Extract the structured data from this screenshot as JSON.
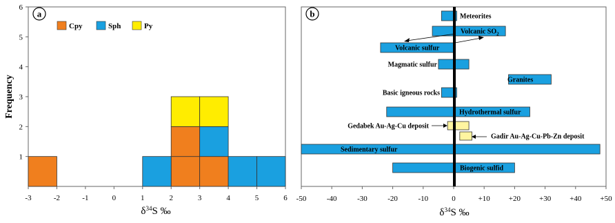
{
  "chart_data": [
    {
      "type": "bar",
      "panel_label": "a",
      "xlabel": "δ34S ‰",
      "ylabel": "Frequency",
      "xlim": [
        -3,
        6
      ],
      "ylim": [
        0,
        6
      ],
      "x_ticks": [
        "-3",
        "-2",
        "-1",
        "0",
        "1",
        "2",
        "3",
        "4",
        "5",
        "6"
      ],
      "y_ticks": [
        "1",
        "2",
        "3",
        "4",
        "5",
        "6"
      ],
      "bin_width": 1,
      "legend": [
        "Cpy",
        "Sph",
        "Py"
      ],
      "series": [
        {
          "name": "Cpy",
          "color": "#F07F1E",
          "cells": [
            {
              "bin": -3,
              "level": 1
            },
            {
              "bin": 2,
              "level": 1
            },
            {
              "bin": 2,
              "level": 2
            },
            {
              "bin": 3,
              "level": 1
            }
          ]
        },
        {
          "name": "Sph",
          "color": "#1AA0E0",
          "cells": [
            {
              "bin": 1,
              "level": 1
            },
            {
              "bin": 3,
              "level": 2
            },
            {
              "bin": 4,
              "level": 1
            },
            {
              "bin": 5,
              "level": 1
            }
          ]
        },
        {
          "name": "Py",
          "color": "#FFED00",
          "cells": [
            {
              "bin": 2,
              "level": 3
            },
            {
              "bin": 3,
              "level": 3
            }
          ]
        }
      ]
    },
    {
      "type": "range",
      "panel_label": "b",
      "xlabel": "δ34S ‰",
      "xlim": [
        -50,
        50
      ],
      "x_ticks": [
        "-50",
        "-40",
        "-30",
        "-20",
        "-10",
        "0",
        "+10",
        "+20",
        "+30",
        "+40",
        "+50"
      ],
      "ranges": [
        {
          "label": "Meteorites",
          "min": -4,
          "max": 1,
          "color": "#1AA0E0"
        },
        {
          "label": "Volcanic SO2",
          "min": -7,
          "max": 17,
          "color": "#1AA0E0"
        },
        {
          "label": "Volcanic sulfur",
          "min": -24,
          "max": 0,
          "color": "#1AA0E0"
        },
        {
          "label": "Magmatic sulfur",
          "min": -5,
          "max": 5,
          "color": "#1AA0E0"
        },
        {
          "label": "Granites",
          "min": 18,
          "max": 32,
          "color": "#1AA0E0"
        },
        {
          "label": "Basic igneous rocks",
          "min": -4,
          "max": 1,
          "color": "#1AA0E0"
        },
        {
          "label": "Hydrothermal sulfur",
          "min": -22,
          "max": 25,
          "color": "#1AA0E0"
        },
        {
          "label": "Gedabek Au-Ag-Cu deposit",
          "min": -2,
          "max": 5,
          "color": "#FFF5A0"
        },
        {
          "label": "Gadir Au-Ag-Cu-Pb-Zn deposit",
          "min": 2,
          "max": 6,
          "color": "#FFF5A0"
        },
        {
          "label": "Sedimentary sulfur",
          "min": -50,
          "max": 48,
          "color": "#1AA0E0"
        },
        {
          "label": "Biogenic sulfid",
          "min": -20,
          "max": 20,
          "color": "#1AA0E0"
        }
      ]
    }
  ]
}
